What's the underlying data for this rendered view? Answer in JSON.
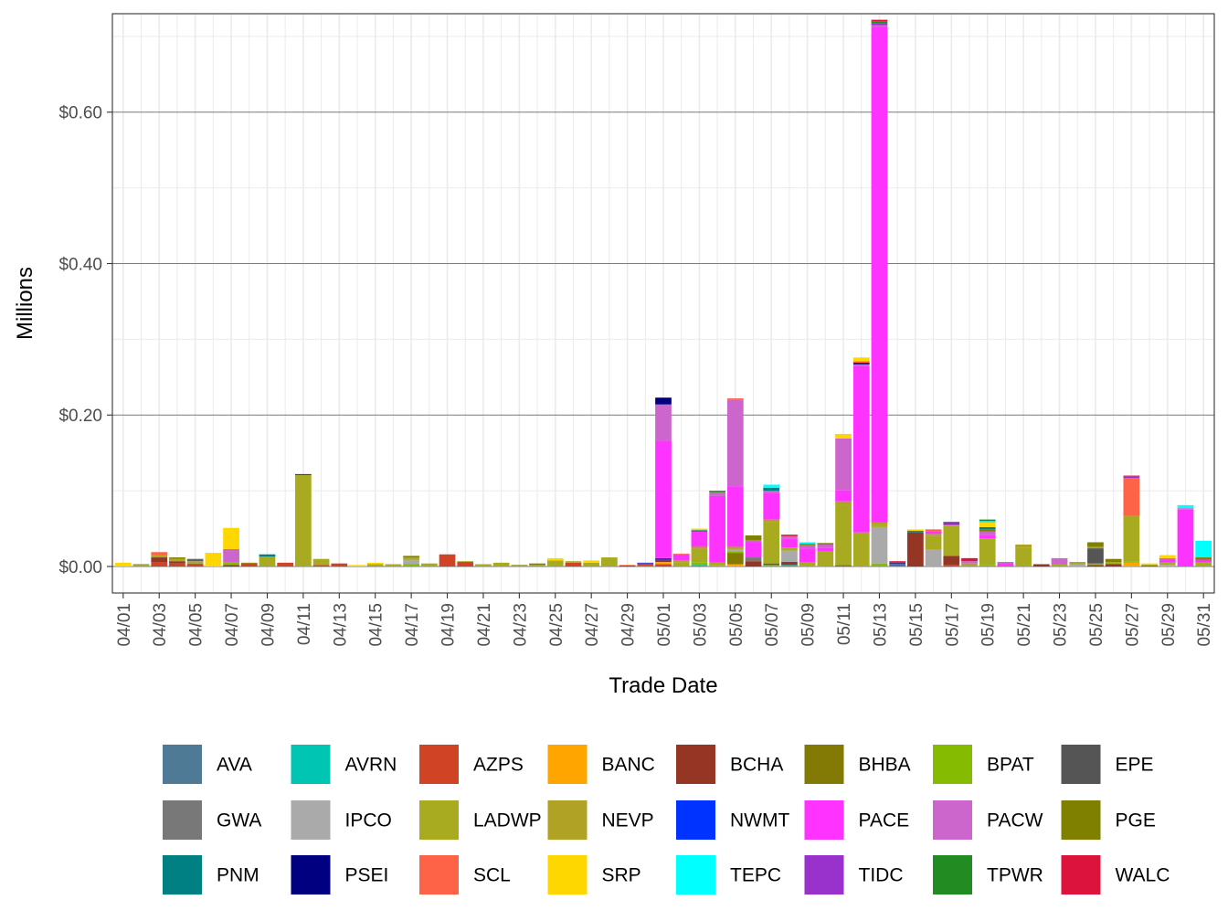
{
  "chart_data": {
    "type": "bar",
    "stacked": true,
    "title": "",
    "xlabel": "Trade Date",
    "ylabel": "Millions",
    "ylim": [
      -0.035,
      0.73
    ],
    "y_ticks": [
      {
        "value": 0.0,
        "label": "$0.00"
      },
      {
        "value": 0.2,
        "label": "$0.20"
      },
      {
        "value": 0.4,
        "label": "$0.40"
      },
      {
        "value": 0.6,
        "label": "$0.60"
      }
    ],
    "x_tick_labels": [
      "04/01",
      "04/03",
      "04/05",
      "04/07",
      "04/09",
      "04/11",
      "04/13",
      "04/15",
      "04/17",
      "04/19",
      "04/21",
      "04/23",
      "04/25",
      "04/27",
      "04/29",
      "05/01",
      "05/03",
      "05/05",
      "05/07",
      "05/09",
      "05/11",
      "05/13",
      "05/15",
      "05/17",
      "05/19",
      "05/21",
      "05/23",
      "05/25",
      "05/27",
      "05/29",
      "05/31"
    ],
    "categories": [
      "04/01",
      "04/02",
      "04/03",
      "04/04",
      "04/05",
      "04/06",
      "04/07",
      "04/08",
      "04/09",
      "04/10",
      "04/11",
      "04/12",
      "04/13",
      "04/14",
      "04/15",
      "04/16",
      "04/17",
      "04/18",
      "04/19",
      "04/20",
      "04/21",
      "04/22",
      "04/23",
      "04/24",
      "04/25",
      "04/26",
      "04/27",
      "04/28",
      "04/29",
      "04/30",
      "05/01",
      "05/02",
      "05/03",
      "05/04",
      "05/05",
      "05/06",
      "05/07",
      "05/08",
      "05/09",
      "05/10",
      "05/11",
      "05/12",
      "05/13",
      "05/14",
      "05/15",
      "05/16",
      "05/17",
      "05/18",
      "05/19",
      "05/20",
      "05/21",
      "05/22",
      "05/23",
      "05/24",
      "05/25",
      "05/26",
      "05/27",
      "05/28",
      "05/29",
      "05/30",
      "05/31"
    ],
    "grid": true,
    "legend_position": "bottom",
    "legend_columns": 8,
    "series": [
      {
        "name": "AVA",
        "color": "#4E7A96",
        "segments": {
          "29": 0.001,
          "43": 0.001
        }
      },
      {
        "name": "AVRN",
        "color": "#00C5B2",
        "segments": {
          "8": 0.001,
          "32": 0.002,
          "37": 0.002
        }
      },
      {
        "name": "AZPS",
        "color": "#D04425",
        "segments": {
          "2": 0.006,
          "3": 0.004,
          "4": 0.003,
          "7": 0.004,
          "9": 0.005,
          "11": 0.002,
          "12": 0.004,
          "18": 0.016,
          "19": 0.006,
          "25": 0.005,
          "29": 0.003,
          "30": 0.003,
          "46": 0.002
        }
      },
      {
        "name": "BANC",
        "color": "#FFA500",
        "segments": {
          "30": 0.003,
          "34": 0.003,
          "56": 0.005
        }
      },
      {
        "name": "BCHA",
        "color": "#953523",
        "segments": {
          "2": 0.006,
          "3": 0.003,
          "6": 0.002,
          "30": 0.003,
          "35": 0.007,
          "37": 0.004,
          "44": 0.045,
          "46": 0.012,
          "51": 0.003,
          "54": 0.002,
          "55": 0.003
        }
      },
      {
        "name": "BHBA",
        "color": "#827A04",
        "segments": {
          "34": 0.015,
          "40": 0.002
        }
      },
      {
        "name": "BPAT",
        "color": "#85BB00",
        "segments": {
          "6": 0.003,
          "16": 0.003,
          "32": 0.003,
          "34": 0.002,
          "36": 0.002,
          "42": 0.004,
          "48": 0.002,
          "54": 0.002,
          "56": 0.002
        }
      },
      {
        "name": "EPE",
        "color": "#555555",
        "segments": {
          "36": 0.002,
          "54": 0.02
        }
      },
      {
        "name": "GWA",
        "color": "#787878",
        "segments": {
          "4": 0.001,
          "35": 0.005
        }
      },
      {
        "name": "IPCO",
        "color": "#AAAAAA",
        "segments": {
          "16": 0.006,
          "34": 0.003,
          "37": 0.015,
          "42": 0.048,
          "45": 0.022,
          "53": 0.003,
          "58": 0.002
        }
      },
      {
        "name": "LADWP",
        "color": "#A8AB1F",
        "segments": {
          "1": 0.002,
          "2": 0.003,
          "3": 0.003,
          "4": 0.003,
          "8": 0.012,
          "10": 0.12,
          "11": 0.008,
          "14": 0.003,
          "15": 0.003,
          "16": 0.003,
          "17": 0.004,
          "19": 0.001,
          "20": 0.003,
          "21": 0.005,
          "22": 0.001,
          "23": 0.002,
          "24": 0.008,
          "25": 0.002,
          "26": 0.005,
          "27": 0.012,
          "31": 0.005,
          "32": 0.018,
          "33": 0.002,
          "36": 0.055,
          "37": 0.004,
          "38": 0.003,
          "39": 0.02,
          "40": 0.08,
          "41": 0.045,
          "42": 0.003,
          "45": 0.018,
          "46": 0.04,
          "47": 0.004,
          "48": 0.035,
          "50": 0.025,
          "52": 0.003,
          "53": 0.003,
          "54": 0.002,
          "55": 0.003,
          "56": 0.06,
          "58": 0.003,
          "60": 0.005
        }
      },
      {
        "name": "NEVP",
        "color": "#B0A225",
        "segments": {
          "10": 0.001,
          "31": 0.003,
          "32": 0.003,
          "33": 0.003,
          "34": 0.003,
          "36": 0.003,
          "38": 0.003,
          "40": 0.004,
          "42": 0.003,
          "45": 0.003,
          "50": 0.004
        }
      },
      {
        "name": "NWMT",
        "color": "#0033FF",
        "segments": {
          "28": 0.001,
          "29": 0.001,
          "30": 0.002,
          "43": 0.001
        }
      },
      {
        "name": "PACE",
        "color": "#FF33FF",
        "segments": {
          "30": 0.155,
          "31": 0.008,
          "32": 0.02,
          "33": 0.088,
          "34": 0.08,
          "35": 0.02,
          "36": 0.035,
          "37": 0.012,
          "38": 0.018,
          "39": 0.005,
          "40": 0.015,
          "41": 0.22,
          "42": 0.655,
          "45": 0.003,
          "48": 0.005,
          "49": 0.003,
          "58": 0.004,
          "59": 0.075,
          "60": 0.004
        }
      },
      {
        "name": "PACW",
        "color": "#CC66CC",
        "segments": {
          "6": 0.018,
          "30": 0.048,
          "33": 0.005,
          "34": 0.114,
          "35": 0.003,
          "36": 0.003,
          "37": 0.003,
          "38": 0.004,
          "39": 0.004,
          "40": 0.068,
          "41": 0.002,
          "42": 0.002,
          "46": 0.002,
          "47": 0.003,
          "48": 0.004,
          "49": 0.003,
          "52": 0.008,
          "58": 0.002,
          "59": 0.002
        }
      },
      {
        "name": "PGE",
        "color": "#808000",
        "segments": {
          "1": 0.001,
          "3": 0.002,
          "7": 0.001,
          "16": 0.002,
          "22": 0.001,
          "23": 0.002,
          "35": 0.006,
          "38": 0.002,
          "39": 0.002,
          "43": 0.002,
          "48": 0.003,
          "54": 0.006,
          "55": 0.004,
          "57": 0.002,
          "60": 0.003
        }
      },
      {
        "name": "PNM",
        "color": "#008080",
        "segments": {
          "8": 0.003,
          "32": 0.002,
          "36": 0.004,
          "44": 0.002,
          "48": 0.003
        }
      },
      {
        "name": "PSEI",
        "color": "#000080",
        "segments": {
          "10": 0.001,
          "30": 0.009,
          "41": 0.002,
          "43": 0.001,
          "46": 0.001
        }
      },
      {
        "name": "SCL",
        "color": "#FF6347",
        "segments": {
          "2": 0.004,
          "28": 0.001,
          "31": 0.001,
          "34": 0.002,
          "41": 0.002,
          "45": 0.003,
          "56": 0.05
        }
      },
      {
        "name": "SRP",
        "color": "#FFD700",
        "segments": {
          "0": 0.005,
          "5": 0.018,
          "6": 0.028,
          "13": 0.002,
          "14": 0.002,
          "24": 0.003,
          "26": 0.003,
          "32": 0.002,
          "40": 0.006,
          "41": 0.005,
          "44": 0.002,
          "48": 0.006,
          "57": 0.002,
          "58": 0.004
        }
      },
      {
        "name": "TEPC",
        "color": "#00FFFF",
        "segments": {
          "36": 0.004,
          "38": 0.002,
          "48": 0.002,
          "59": 0.004,
          "60": 0.022
        }
      },
      {
        "name": "TIDC",
        "color": "#9932CC",
        "segments": {
          "4": 0.002,
          "42": 0.002,
          "46": 0.002,
          "56": 0.002
        }
      },
      {
        "name": "TPWR",
        "color": "#228B22",
        "segments": {
          "4": 0.001,
          "33": 0.002,
          "42": 0.003,
          "48": 0.002
        }
      },
      {
        "name": "WALC",
        "color": "#DC143C",
        "segments": {
          "37": 0.002,
          "42": 0.002,
          "43": 0.002,
          "47": 0.004,
          "56": 0.001
        }
      }
    ]
  }
}
